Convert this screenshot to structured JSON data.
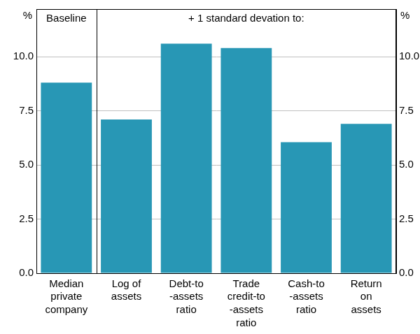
{
  "chart_data": {
    "type": "bar",
    "ylabel": "%",
    "annotations": [
      "Baseline",
      "+ 1 standard devation to:"
    ],
    "categories": [
      [
        "Median",
        "private",
        "company"
      ],
      [
        "Log of",
        "assets"
      ],
      [
        "Debt-to",
        "-assets",
        "ratio"
      ],
      [
        "Trade",
        "credit-to",
        "-assets",
        "ratio"
      ],
      [
        "Cash-to",
        "-assets",
        "ratio"
      ],
      [
        "Return",
        "on",
        "assets"
      ]
    ],
    "values": [
      8.8,
      7.1,
      10.6,
      10.4,
      6.05,
      6.9
    ],
    "color": "#2897b5",
    "ylim": [
      0,
      12.2
    ],
    "yticks": [
      {
        "value": 0,
        "label": "0.0"
      },
      2.5,
      {
        "value": 5,
        "label": "5.0"
      },
      7.5,
      {
        "value": 10,
        "label": "10.0"
      }
    ],
    "grid": true,
    "data_labels": false
  }
}
